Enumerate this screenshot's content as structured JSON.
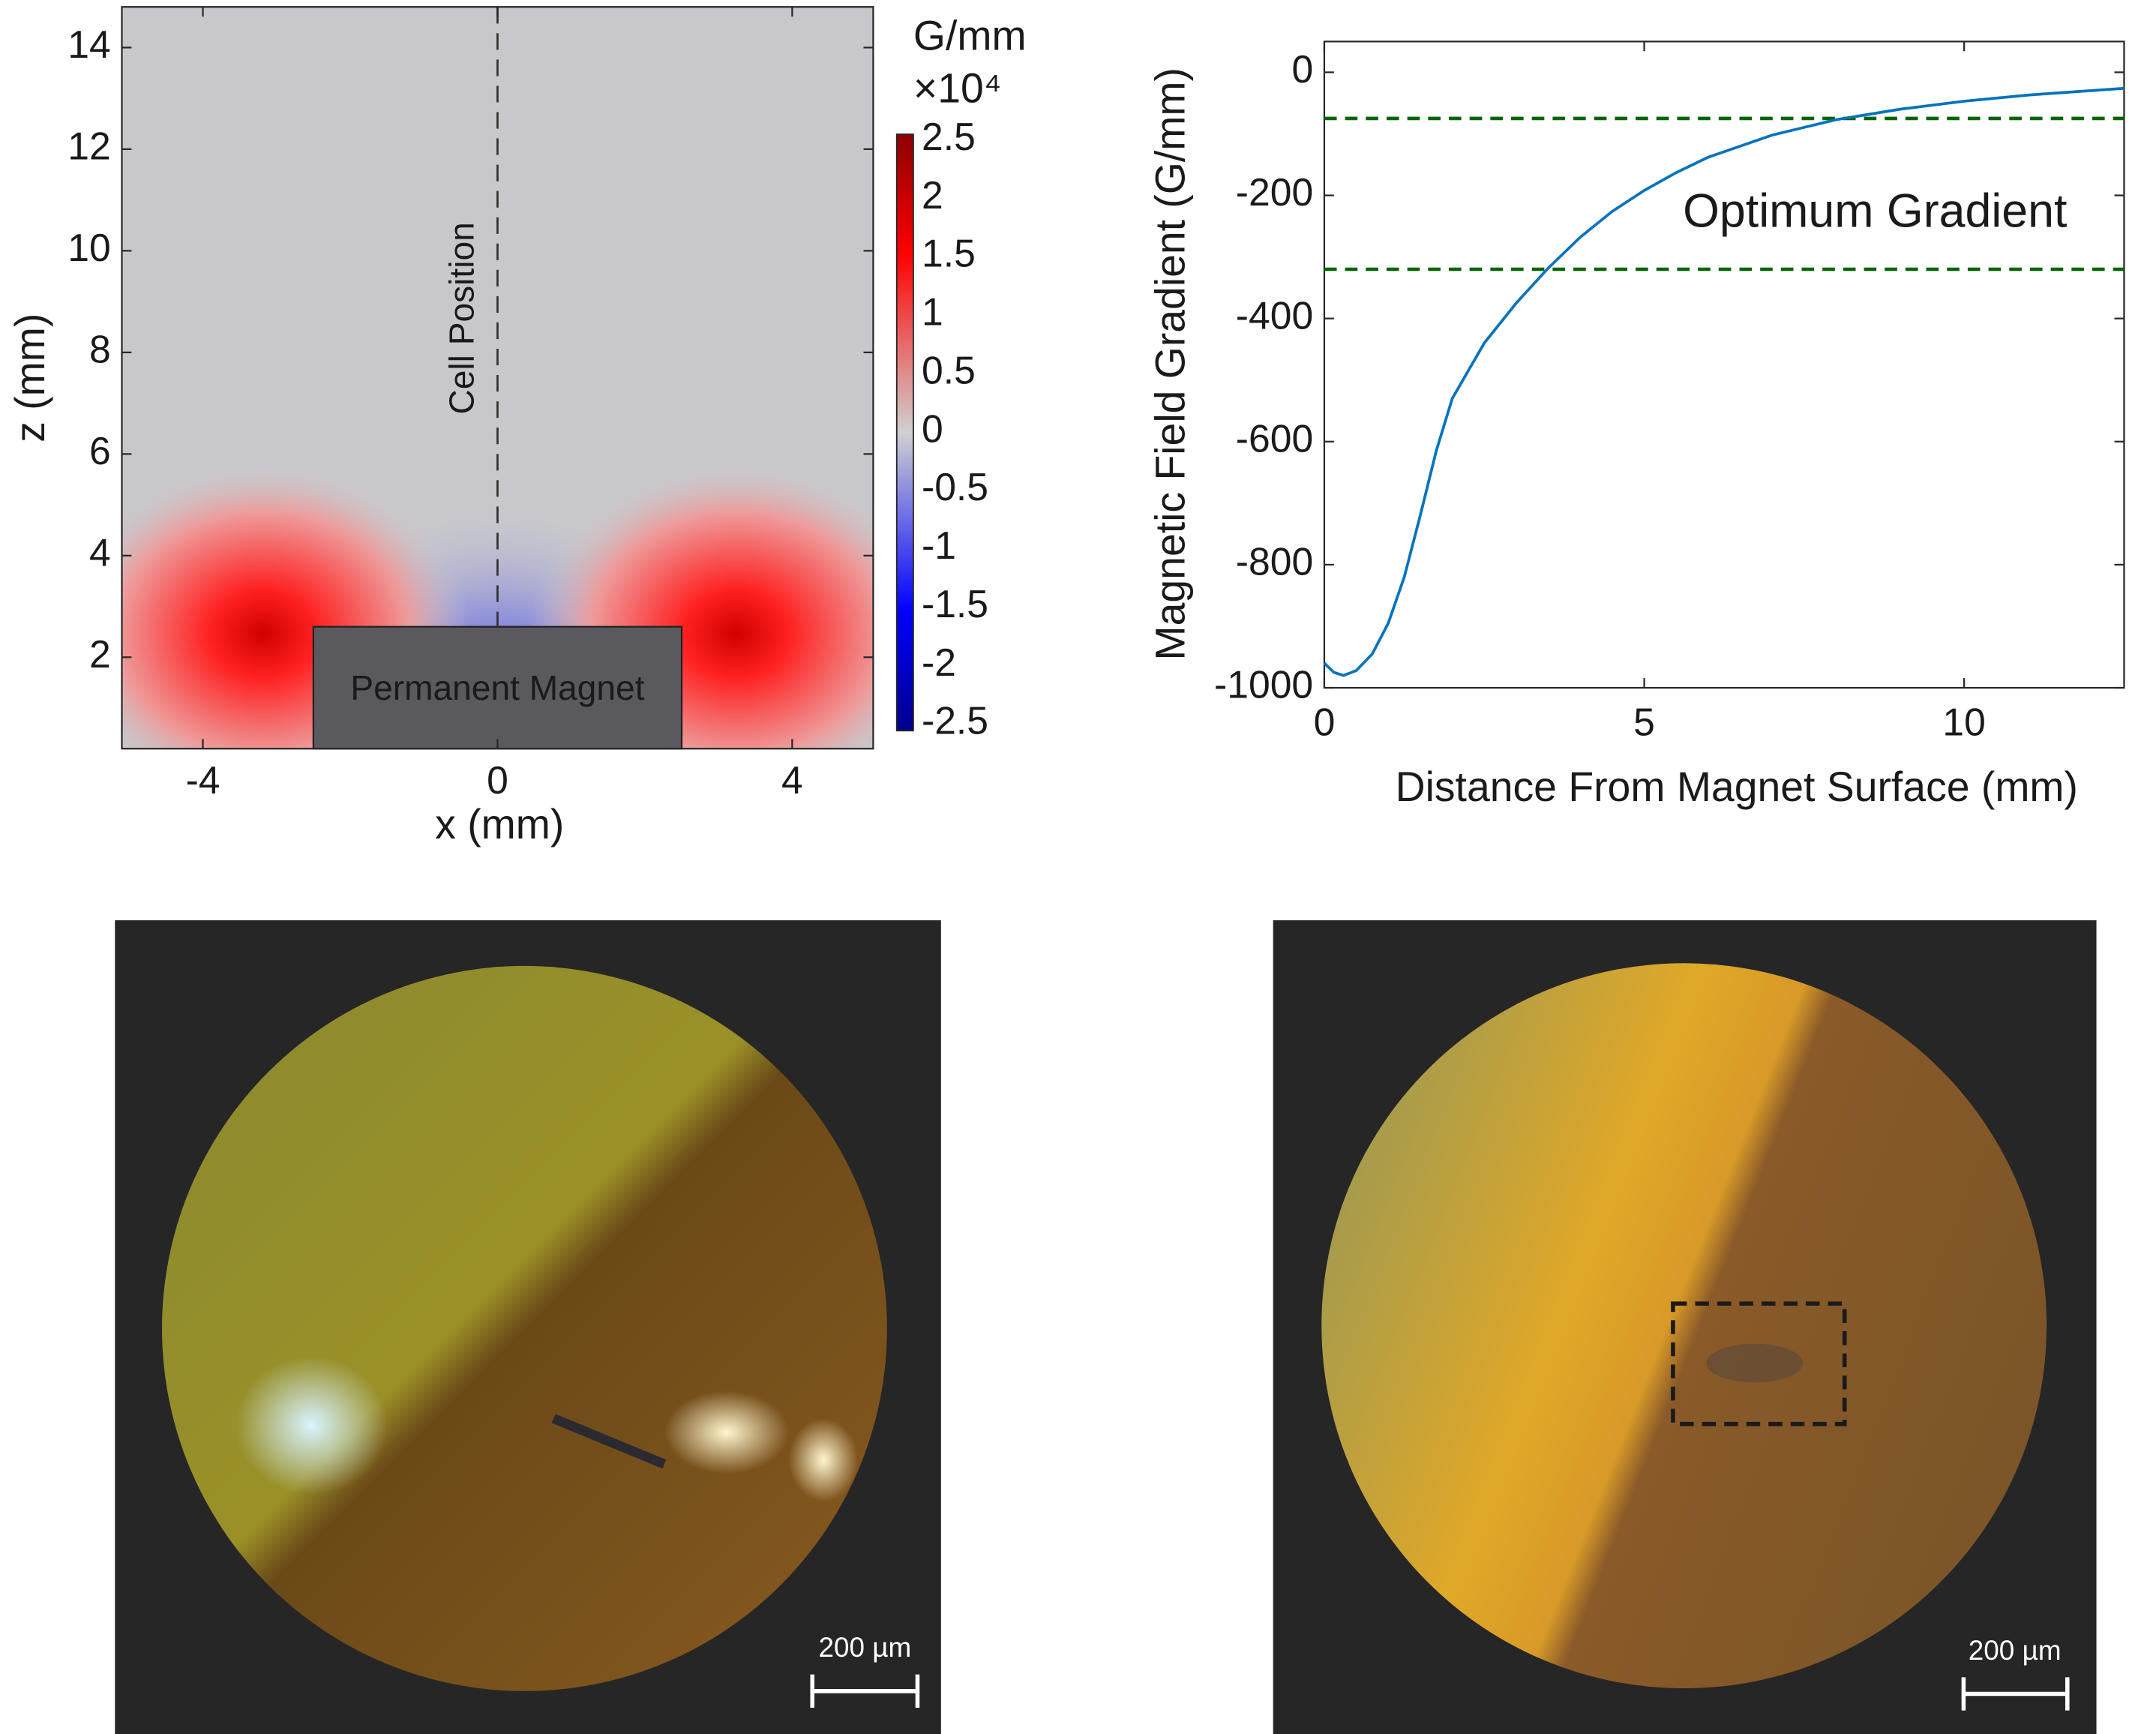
{
  "chart_data": [
    {
      "type": "heatmap",
      "xlabel": "x (mm)",
      "ylabel": "z (mm)",
      "xlim": [
        -5.1,
        5.1
      ],
      "xticks": [
        -4,
        0,
        4
      ],
      "ylim": [
        0.2,
        14.8
      ],
      "yticks": [
        2,
        4,
        6,
        8,
        10,
        12,
        14
      ],
      "colorbar_label": "G/mm",
      "colorbar_exponent": "×10⁴",
      "clim": [
        -2.5,
        2.5
      ],
      "cticks": [
        -2.5,
        -2,
        -1.5,
        -1,
        -0.5,
        0,
        0.5,
        1,
        1.5,
        2,
        2.5
      ],
      "magnet": {
        "label": "Permanent Magnet",
        "x": [
          -2.5,
          2.5
        ],
        "z": [
          0.2,
          2.6
        ]
      },
      "cell_position": {
        "label": "Cell Position",
        "x": 0
      }
    },
    {
      "type": "line",
      "xlabel": "Distance From Magnet Surface (mm)",
      "ylabel": "Magnetic Field Gradient (G/mm)",
      "xlim": [
        0,
        12.5
      ],
      "xticks": [
        0,
        5,
        10
      ],
      "ylim": [
        -1000,
        50
      ],
      "yticks": [
        -1000,
        -800,
        -600,
        -400,
        -200,
        0
      ],
      "x": [
        0,
        0.15,
        0.3,
        0.5,
        0.75,
        1,
        1.25,
        1.5,
        1.75,
        2,
        2.5,
        3,
        3.5,
        4,
        4.5,
        5,
        5.5,
        6,
        7,
        8,
        9,
        10,
        11,
        12.5
      ],
      "series": [
        {
          "name": "Gradient",
          "color": "#0072bd",
          "values": [
            -960,
            -975,
            -980,
            -972,
            -945,
            -895,
            -820,
            -720,
            -615,
            -530,
            -440,
            -375,
            -318,
            -268,
            -226,
            -192,
            -163,
            -138,
            -102,
            -77,
            -60,
            -47,
            -37,
            -26
          ]
        }
      ],
      "hlines": [
        -75,
        -320
      ],
      "hline_color": "#006400",
      "annotation": "Optimum Gradient"
    }
  ],
  "photos": [
    {
      "scale_bar": "200 µm"
    },
    {
      "scale_bar": "200 µm"
    }
  ]
}
